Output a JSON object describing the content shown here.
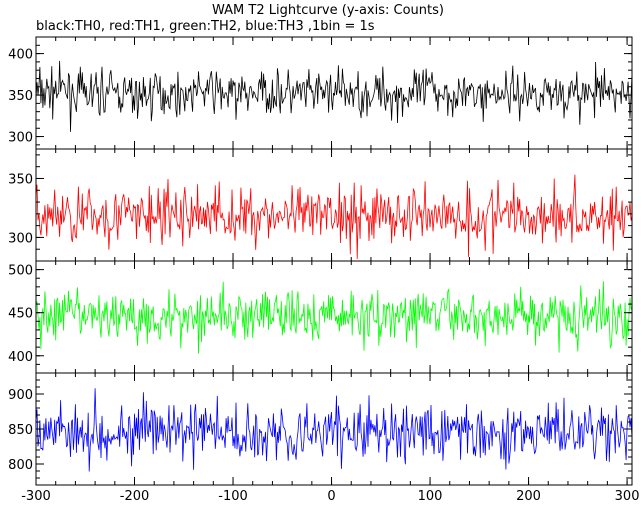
{
  "chart_data": {
    "type": "line",
    "title": "WAM T2 Lightcurve (y-axis: Counts)",
    "subtitle": "black:TH0, red:TH1, green:TH2, blue:TH3 ,1bin = 1s",
    "xlabel": "",
    "ylabel": "",
    "xlim": [
      -300,
      305
    ],
    "x_ticks": [
      -300,
      -200,
      -100,
      0,
      100,
      200,
      300
    ],
    "grid": false,
    "panels": [
      {
        "name": "TH0",
        "color": "#000000",
        "ylim": [
          285,
          420
        ],
        "y_ticks": [
          300,
          350,
          400
        ],
        "x": [
          -300,
          -275,
          -250,
          -225,
          -200,
          -175,
          -150,
          -125,
          -100,
          -75,
          -50,
          -25,
          0,
          25,
          50,
          75,
          100,
          125,
          150,
          175,
          200,
          225,
          250,
          275,
          300
        ],
        "values": [
          352,
          356,
          350,
          355,
          348,
          353,
          351,
          357,
          349,
          354,
          352,
          350,
          355,
          351,
          353,
          349,
          356,
          352,
          350,
          354,
          351,
          355,
          349,
          353,
          352
        ]
      },
      {
        "name": "TH1",
        "color": "#ff0000",
        "ylim": [
          280,
          375
        ],
        "y_ticks": [
          300,
          350
        ],
        "x": [
          -300,
          -275,
          -250,
          -225,
          -200,
          -175,
          -150,
          -125,
          -100,
          -75,
          -50,
          -25,
          0,
          25,
          50,
          75,
          100,
          125,
          150,
          175,
          200,
          225,
          250,
          275,
          300
        ],
        "values": [
          318,
          320,
          316,
          321,
          317,
          319,
          318,
          322,
          317,
          320,
          318,
          316,
          321,
          319,
          320,
          317,
          322,
          318,
          317,
          320,
          318,
          321,
          316,
          319,
          318
        ]
      },
      {
        "name": "TH2",
        "color": "#00ff00",
        "ylim": [
          380,
          510
        ],
        "y_ticks": [
          400,
          450,
          500
        ],
        "x": [
          -300,
          -275,
          -250,
          -225,
          -200,
          -175,
          -150,
          -125,
          -100,
          -75,
          -50,
          -25,
          0,
          25,
          50,
          75,
          100,
          125,
          150,
          175,
          200,
          225,
          250,
          275,
          300
        ],
        "values": [
          445,
          448,
          444,
          449,
          443,
          447,
          446,
          450,
          444,
          448,
          446,
          443,
          449,
          445,
          447,
          444,
          450,
          446,
          444,
          448,
          445,
          449,
          443,
          447,
          446
        ]
      },
      {
        "name": "TH3",
        "color": "#0000ff",
        "ylim": [
          770,
          930
        ],
        "y_ticks": [
          800,
          850,
          900
        ],
        "x": [
          -300,
          -275,
          -250,
          -225,
          -200,
          -175,
          -150,
          -125,
          -100,
          -75,
          -50,
          -25,
          0,
          25,
          50,
          75,
          100,
          125,
          150,
          175,
          200,
          225,
          250,
          275,
          300
        ],
        "values": [
          858,
          852,
          846,
          849,
          843,
          848,
          845,
          850,
          842,
          847,
          845,
          842,
          848,
          844,
          846,
          843,
          849,
          845,
          843,
          847,
          844,
          848,
          842,
          846,
          845
        ]
      }
    ]
  }
}
